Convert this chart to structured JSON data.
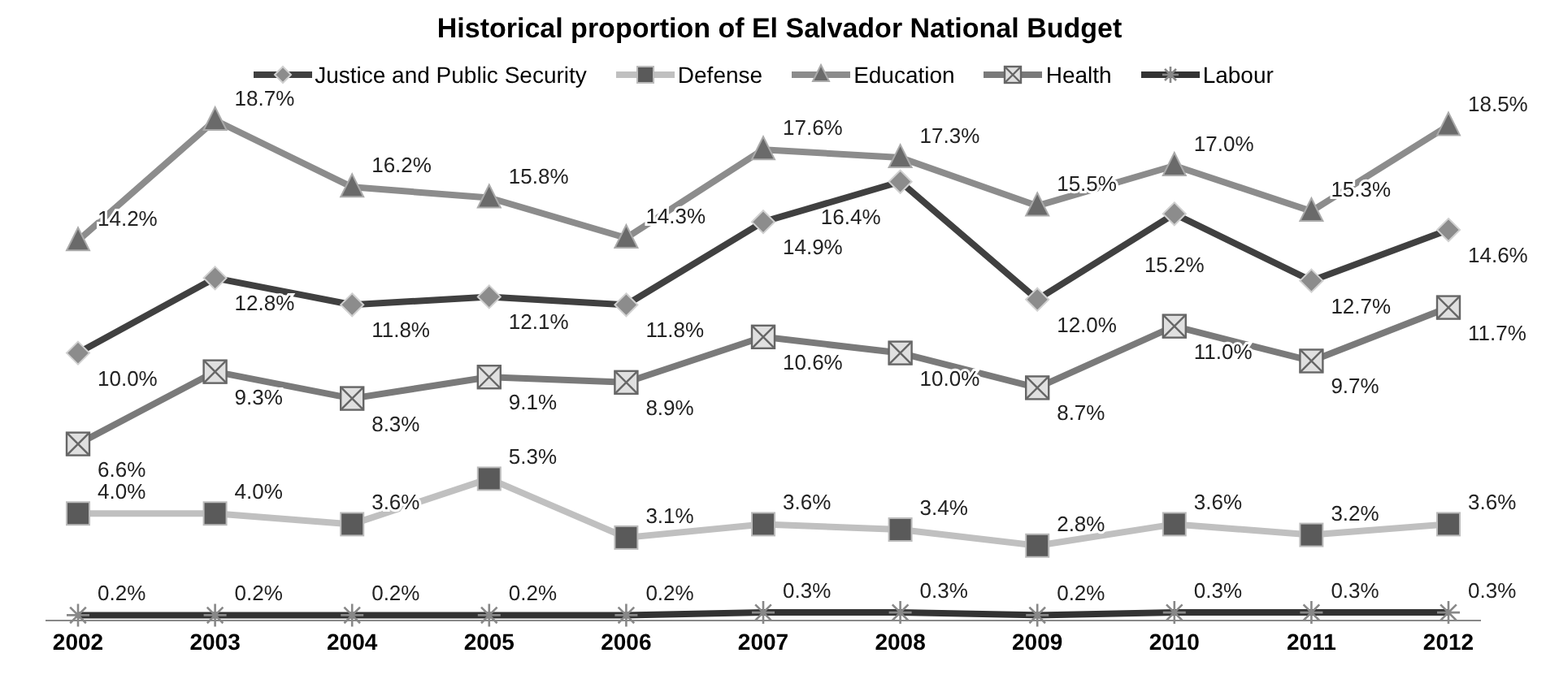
{
  "chart_data": {
    "type": "line",
    "title": "Historical proportion of El Salvador National Budget",
    "categories": [
      "2002",
      "2003",
      "2004",
      "2005",
      "2006",
      "2007",
      "2008",
      "2009",
      "2010",
      "2011",
      "2012"
    ],
    "series": [
      {
        "name": "Justice and Public Security",
        "color": "#404040",
        "marker": "diamond",
        "values": [
          10.0,
          12.8,
          11.8,
          12.1,
          11.8,
          14.9,
          16.4,
          12.0,
          15.2,
          12.7,
          14.6
        ],
        "value_labels": [
          "10.0%",
          "12.8%",
          "11.8%",
          "12.1%",
          "11.8%",
          "14.9%",
          "16.4%",
          "12.0%",
          "15.2%",
          "12.7%",
          "14.6%"
        ]
      },
      {
        "name": "Defense",
        "color": "#c0c0c0",
        "marker": "square",
        "values": [
          4.0,
          4.0,
          3.6,
          5.3,
          3.1,
          3.6,
          3.4,
          2.8,
          3.6,
          3.2,
          3.6
        ],
        "value_labels": [
          "4.0%",
          "4.0%",
          "3.6%",
          "5.3%",
          "3.1%",
          "3.6%",
          "3.4%",
          "2.8%",
          "3.6%",
          "3.2%",
          "3.6%"
        ]
      },
      {
        "name": "Education",
        "color": "#8c8c8c",
        "marker": "triangle",
        "values": [
          14.2,
          18.7,
          16.2,
          15.8,
          14.3,
          17.6,
          17.3,
          15.5,
          17.0,
          15.3,
          18.5
        ],
        "value_labels": [
          "14.2%",
          "18.7%",
          "16.2%",
          "15.8%",
          "14.3%",
          "17.6%",
          "17.3%",
          "15.5%",
          "17.0%",
          "15.3%",
          "18.5%"
        ]
      },
      {
        "name": "Health",
        "color": "#7a7a7a",
        "marker": "square",
        "values": [
          6.6,
          9.3,
          8.3,
          9.1,
          8.9,
          10.6,
          10.0,
          8.7,
          11.0,
          9.7,
          11.7
        ],
        "value_labels": [
          "6.6%",
          "9.3%",
          "8.3%",
          "9.1%",
          "8.9%",
          "10.6%",
          "10.0%",
          "8.7%",
          "11.0%",
          "9.7%",
          "11.7%"
        ]
      },
      {
        "name": "Labour",
        "color": "#333333",
        "marker": "cross",
        "values": [
          0.2,
          0.2,
          0.2,
          0.2,
          0.2,
          0.3,
          0.3,
          0.2,
          0.3,
          0.3,
          0.3
        ],
        "value_labels": [
          "0.2%",
          "0.2%",
          "0.2%",
          "0.2%",
          "0.2%",
          "0.3%",
          "0.3%",
          "0.2%",
          "0.3%",
          "0.3%",
          "0.3%"
        ]
      }
    ],
    "legend": "top",
    "tick_labels": "x",
    "line_style": "solid"
  }
}
